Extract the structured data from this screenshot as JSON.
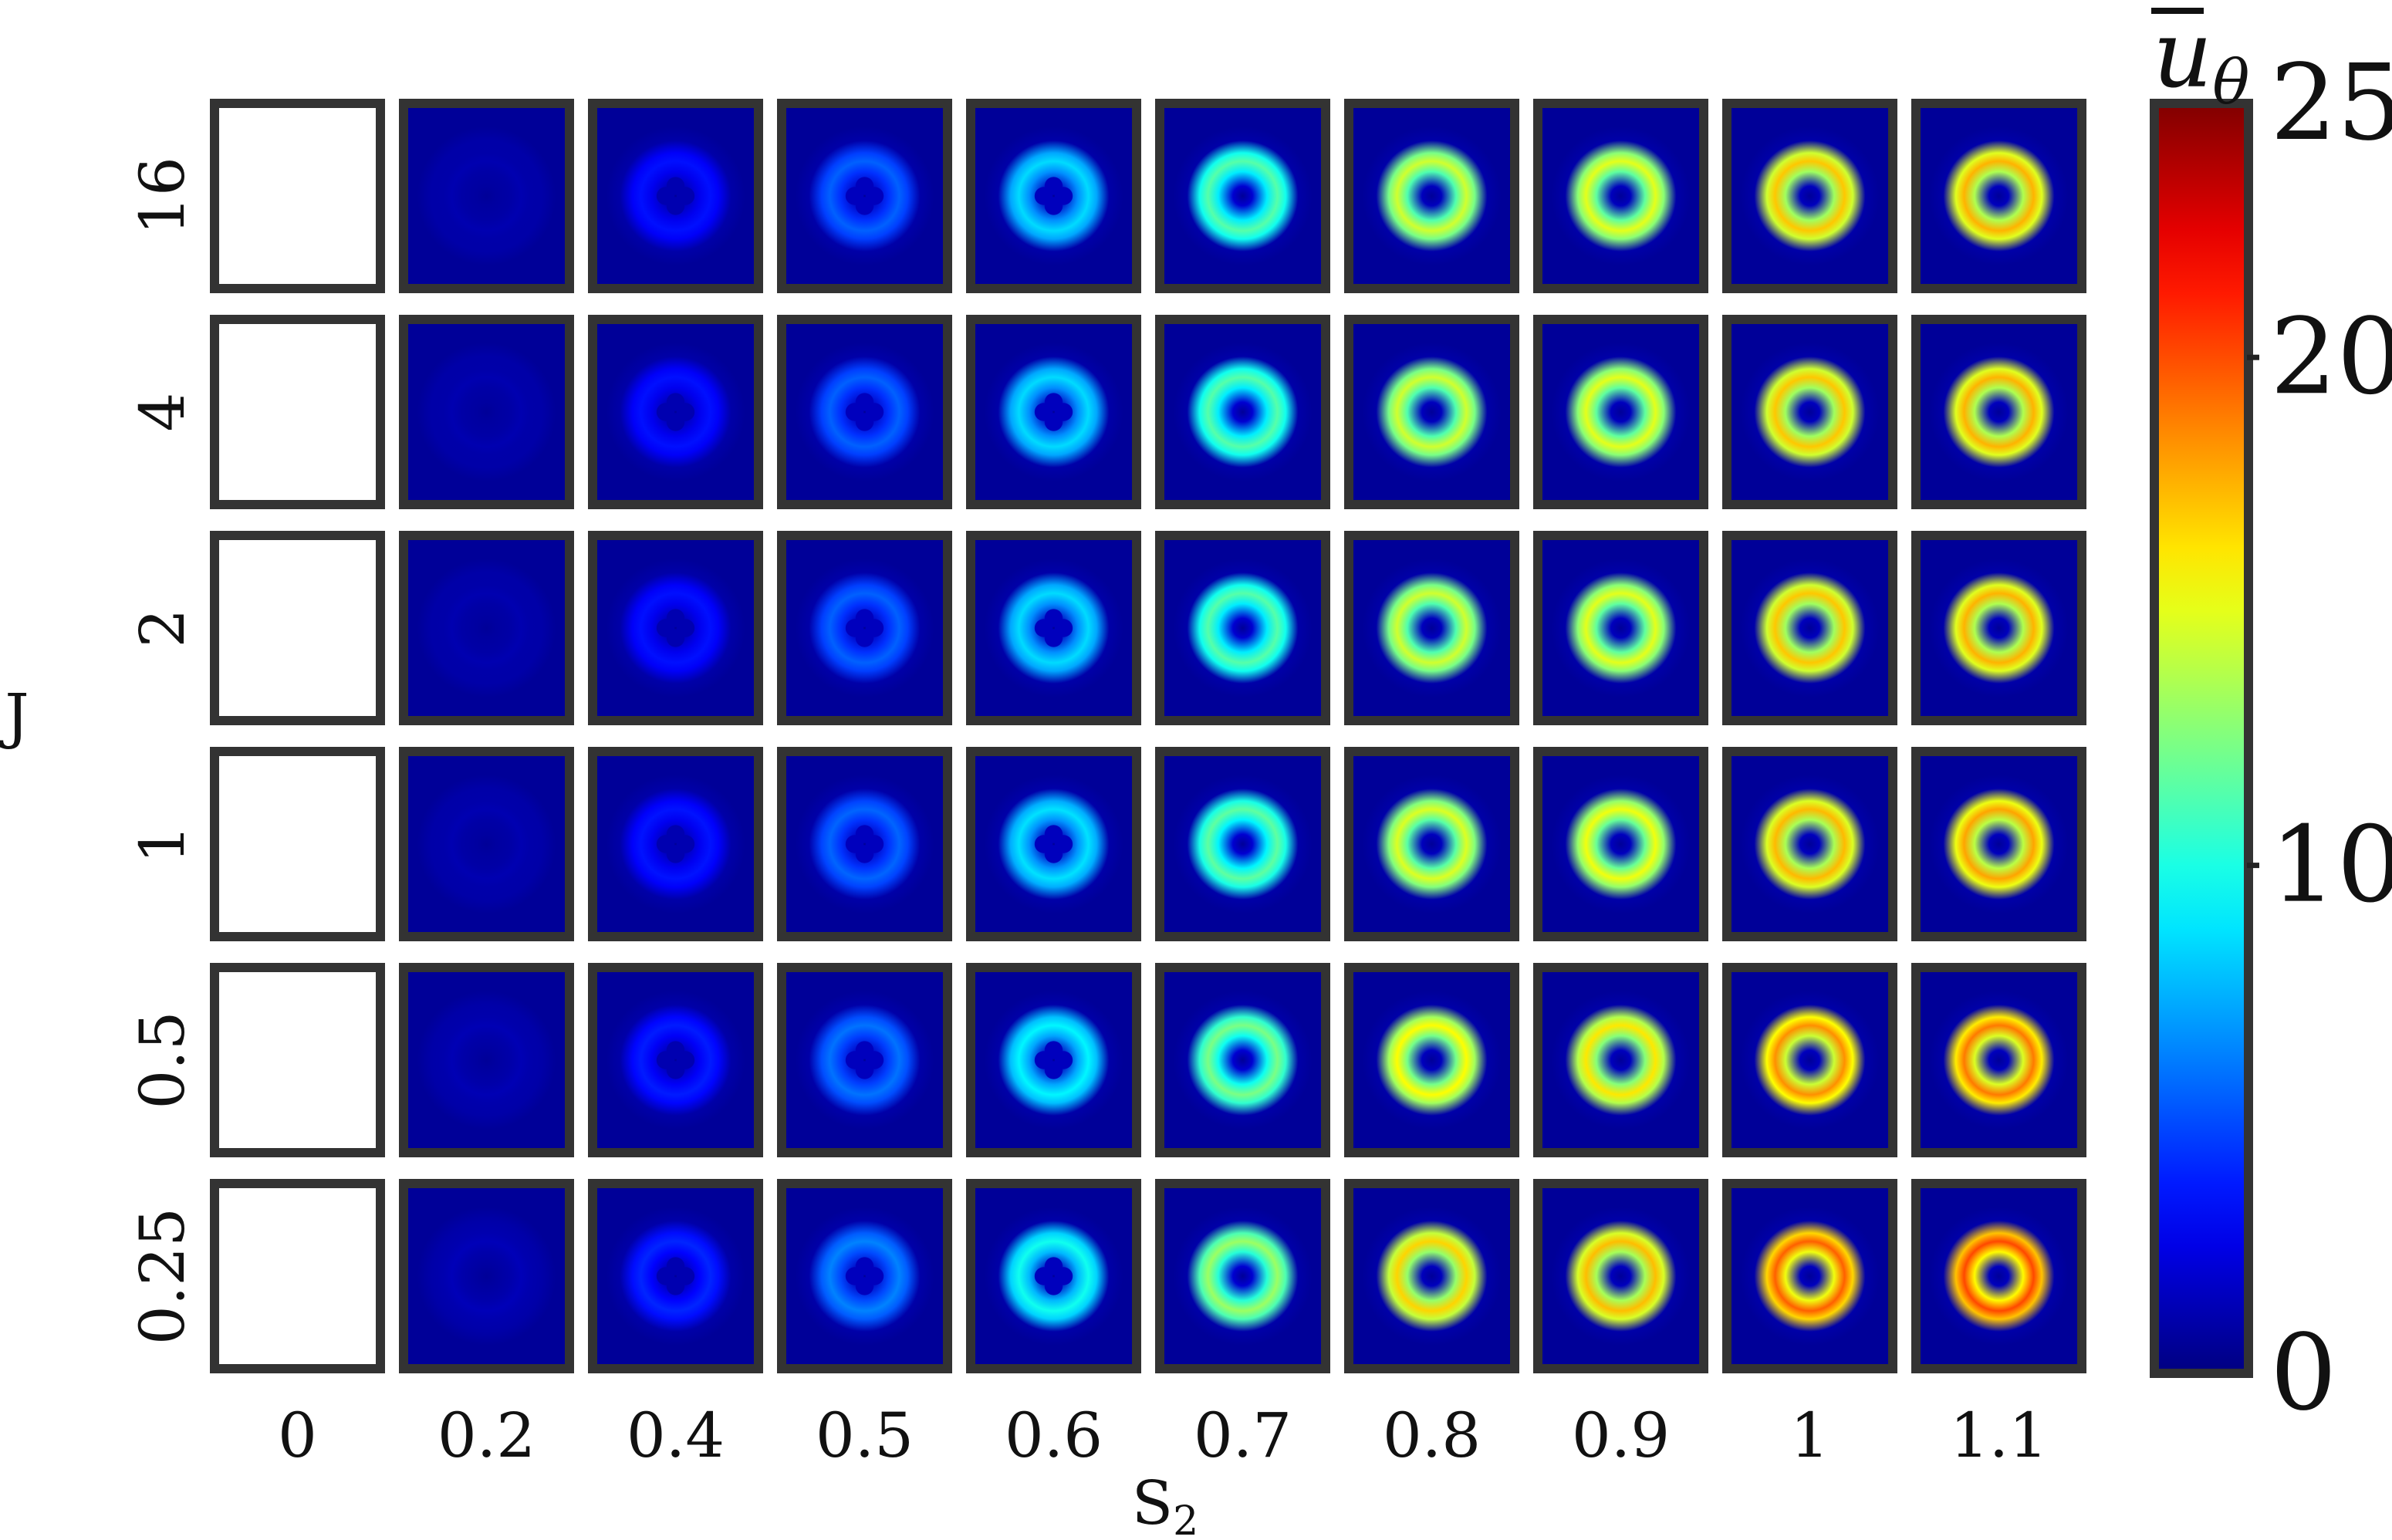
{
  "chart_data": {
    "type": "heatmap",
    "xlabel": "S",
    "xlabel_subscript": "2",
    "ylabel": "J",
    "x_categories": [
      "0",
      "0.2",
      "0.4",
      "0.5",
      "0.6",
      "0.7",
      "0.8",
      "0.9",
      "1",
      "1.1"
    ],
    "y_categories": [
      "16",
      "4",
      "2",
      "1",
      "0.5",
      "0.25"
    ],
    "colorbar": {
      "label_base": "u",
      "label_subscript": "θ",
      "label_overbar": true,
      "range": [
        0,
        25
      ],
      "ticks": [
        "0",
        "10",
        "20",
        "25"
      ],
      "colormap": "jet"
    },
    "cell_description_by_column": [
      {
        "S2": "0",
        "ring_level": 0,
        "center_level": 0,
        "note": "empty panel"
      },
      {
        "S2": "0.2",
        "ring_level": 1.2,
        "center_level": 0.8
      },
      {
        "S2": "0.4",
        "ring_level": 3.5,
        "center_level": 1.2,
        "lobes": 4
      },
      {
        "S2": "0.5",
        "ring_level": 5.5,
        "center_level": 1.5,
        "lobes": 4
      },
      {
        "S2": "0.6",
        "ring_level": 8.5,
        "center_level": 1.5,
        "lobes": 4
      },
      {
        "S2": "0.7",
        "ring_level": 11.5,
        "center_level": 2.0
      },
      {
        "S2": "0.8",
        "ring_level": 14.5,
        "center_level": 1.5
      },
      {
        "S2": "0.9",
        "ring_level": 15.0,
        "center_level": 1.5
      },
      {
        "S2": "1",
        "ring_level": 17.0,
        "center_level": 1.5
      },
      {
        "S2": "1.1",
        "ring_level": 17.5,
        "center_level": 1.5
      }
    ],
    "row_intensity_factor": {
      "16": 1.0,
      "4": 1.0,
      "2": 1.0,
      "1": 1.02,
      "0.5": 1.08,
      "0.25": 1.15
    }
  }
}
